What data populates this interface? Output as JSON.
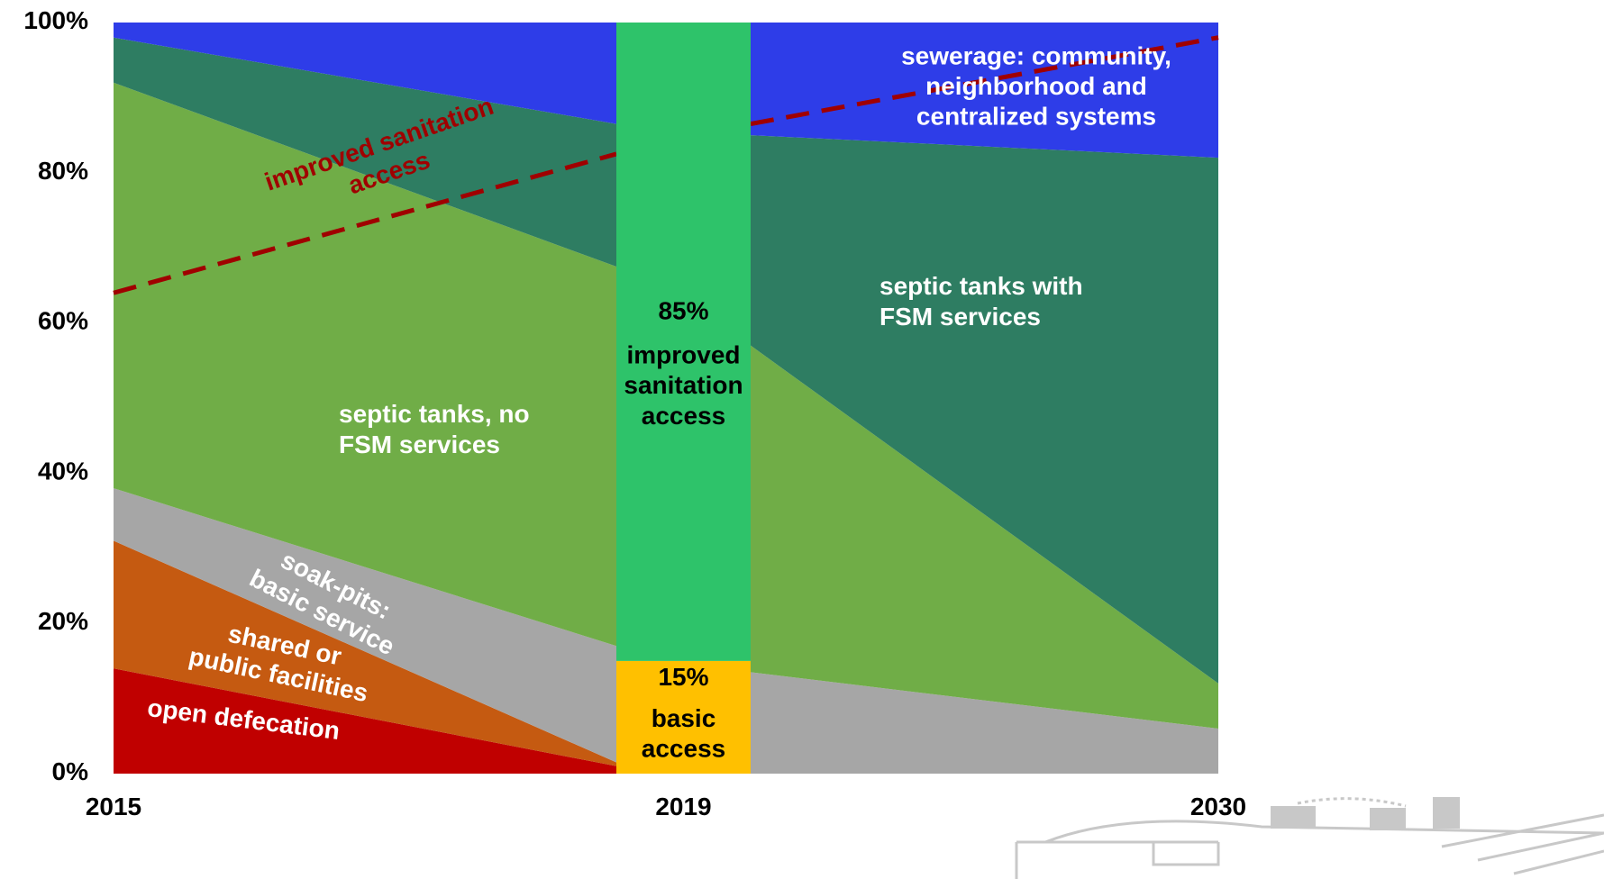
{
  "chart_data": [
    {
      "type": "area",
      "categories": [
        "2015",
        null
      ],
      "ylim": [
        0,
        100
      ],
      "yticks": [
        {
          "value": 0,
          "label": "0%"
        },
        {
          "value": 20,
          "label": "20%"
        },
        {
          "value": 40,
          "label": "40%"
        },
        {
          "value": 60,
          "label": "60%"
        },
        {
          "value": 80,
          "label": "80%"
        },
        {
          "value": 100,
          "label": "100%"
        }
      ],
      "series": [
        {
          "name": "open defecation",
          "color": "#c00000",
          "values": [
            14,
            1
          ]
        },
        {
          "name": "shared or\npublic facilities",
          "color": "#c55a11",
          "values": [
            17,
            0.5
          ]
        },
        {
          "name": "soak-pits:\nbasic service",
          "color": "#a6a6a6",
          "values": [
            7,
            15.5
          ]
        },
        {
          "name": "septic tanks, no\nFSM services",
          "color": "#70ad47",
          "values": [
            54,
            50.5
          ]
        },
        {
          "color": "#2e7d62",
          "values": [
            6,
            19
          ]
        },
        {
          "color": "#2e3de8",
          "values": [
            2,
            13.5
          ]
        }
      ],
      "line": {
        "name": "improved sanitation\naccess",
        "color": "#a00000",
        "values": [
          64,
          82.5
        ]
      }
    },
    {
      "type": "area",
      "categories": [
        null,
        "2030"
      ],
      "ylim": [
        0,
        100
      ],
      "series": [
        {
          "color": "#a6a6a6",
          "values": [
            13.5,
            6
          ]
        },
        {
          "color": "#70ad47",
          "values": [
            43.5,
            6
          ]
        },
        {
          "name": "septic tanks with\nFSM services",
          "color": "#2e7d62",
          "values": [
            28,
            70
          ]
        },
        {
          "name": "sewerage: community,\nneighborhood and\ncentralized systems",
          "color": "#2e3de8",
          "values": [
            15,
            18
          ]
        }
      ],
      "line": {
        "color": "#a00000",
        "values": [
          86.5,
          98
        ]
      }
    },
    {
      "type": "bar",
      "categories": [
        "2019"
      ],
      "ylim": [
        0,
        100
      ],
      "series": [
        {
          "name": "basic\naccess",
          "color": "#ffc000",
          "values": [
            15
          ],
          "value_labels": [
            "15%"
          ]
        },
        {
          "name": "improved\nsanitation\naccess",
          "color": "#2ec36a",
          "values": [
            85
          ],
          "value_labels": [
            "85%"
          ]
        }
      ]
    }
  ]
}
